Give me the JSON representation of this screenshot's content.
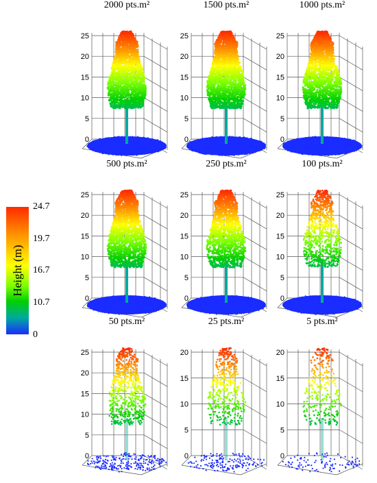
{
  "panels": [
    {
      "title": "2000 pts.m²",
      "density": 1.0,
      "z_ticks": [
        "25",
        "20",
        "15",
        "10",
        "5",
        "0"
      ]
    },
    {
      "title": "1500 pts.m²",
      "density": 0.95,
      "z_ticks": [
        "25",
        "20",
        "15",
        "10",
        "5",
        "0"
      ]
    },
    {
      "title": "1000 pts.m²",
      "density": 0.9,
      "z_ticks": [
        "25",
        "20",
        "15",
        "10",
        "5",
        "0"
      ]
    },
    {
      "title": "500 pts.m²",
      "density": 0.8,
      "z_ticks": [
        "25",
        "20",
        "15",
        "10",
        "5",
        "0"
      ]
    },
    {
      "title": "250 pts.m²",
      "density": 0.65,
      "z_ticks": [
        "25",
        "20",
        "15",
        "10",
        "5",
        "0"
      ]
    },
    {
      "title": "100 pts.m²",
      "density": 0.45,
      "z_ticks": [
        "25",
        "20",
        "15",
        "10",
        "5",
        "0"
      ]
    },
    {
      "title": "50 pts.m²",
      "density": 0.3,
      "z_ticks": [
        "25",
        "20",
        "15",
        "10",
        "5",
        "0"
      ]
    },
    {
      "title": "25 pts.m²",
      "density": 0.18,
      "z_ticks": [
        "20",
        "15",
        "10",
        "5",
        "0"
      ]
    },
    {
      "title": "5 pts.m²",
      "density": 0.1,
      "z_ticks": [
        "20",
        "15",
        "10",
        "5",
        "0"
      ]
    }
  ],
  "legend": {
    "title": "Height (m)",
    "ticks": [
      "24.7",
      "19.7",
      "16.7",
      "10.7",
      "0"
    ],
    "colors": [
      "#ff2a00",
      "#ff8a00",
      "#ffff00",
      "#7cff00",
      "#00d000",
      "#00aaa0",
      "#1a2cff"
    ]
  }
}
